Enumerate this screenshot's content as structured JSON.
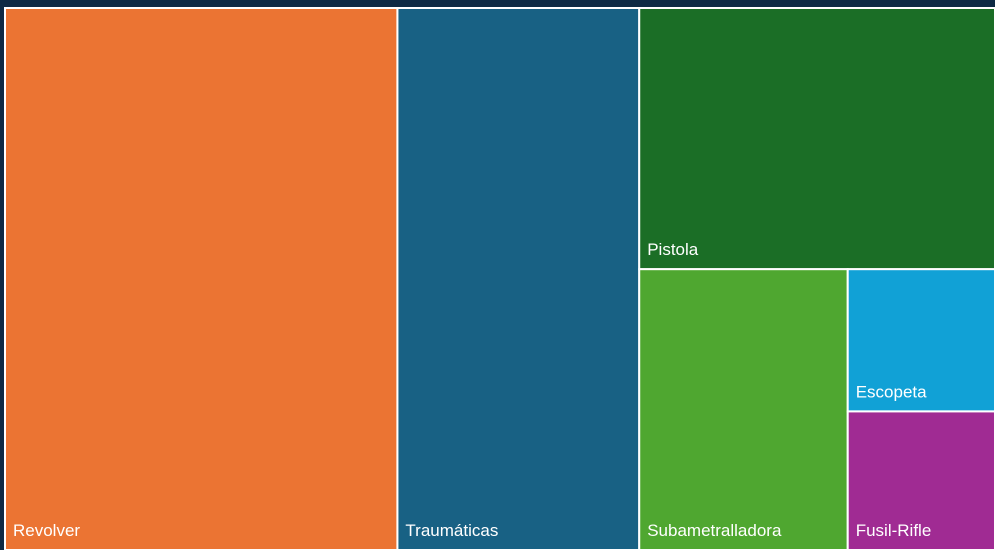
{
  "chart_data": {
    "type": "treemap",
    "categories": [
      "Revolver",
      "Traumáticas",
      "Pistola",
      "Subametralladora",
      "Escopeta",
      "Fusil-Rifle"
    ],
    "values": [
      39.6,
      24.4,
      17.3,
      10.9,
      3.9,
      3.8
    ],
    "colors": [
      "#eb7433",
      "#186184",
      "#1b6e26",
      "#4fa730",
      "#11a1d6",
      "#a02b93"
    ]
  }
}
